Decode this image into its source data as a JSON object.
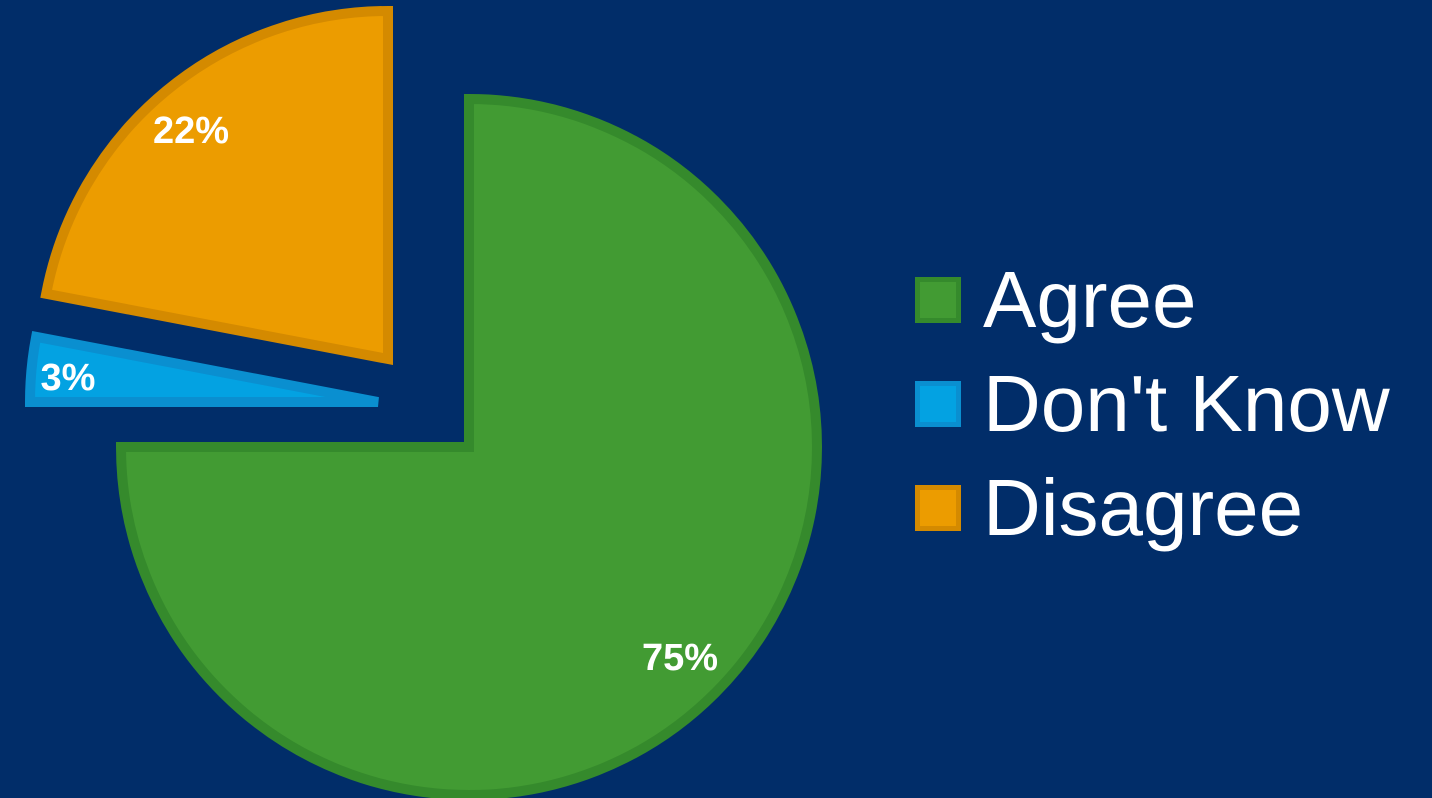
{
  "chart_data": {
    "type": "pie",
    "title": "",
    "categories": [
      "Agree",
      "Don't Know",
      "Disagree"
    ],
    "values": [
      75,
      3,
      22
    ],
    "data_labels": [
      "75%",
      "3%",
      "22%"
    ],
    "legend": {
      "placement": "right",
      "entries": [
        "Agree",
        "Don't Know",
        "Disagree"
      ]
    },
    "exploded": true,
    "colors": [
      "#429b33",
      "#03a2e2",
      "#ec9c00"
    ],
    "edge_colors": [
      "#358a2c",
      "#0a8fd0",
      "#d48a00"
    ],
    "background": "#012d69"
  }
}
